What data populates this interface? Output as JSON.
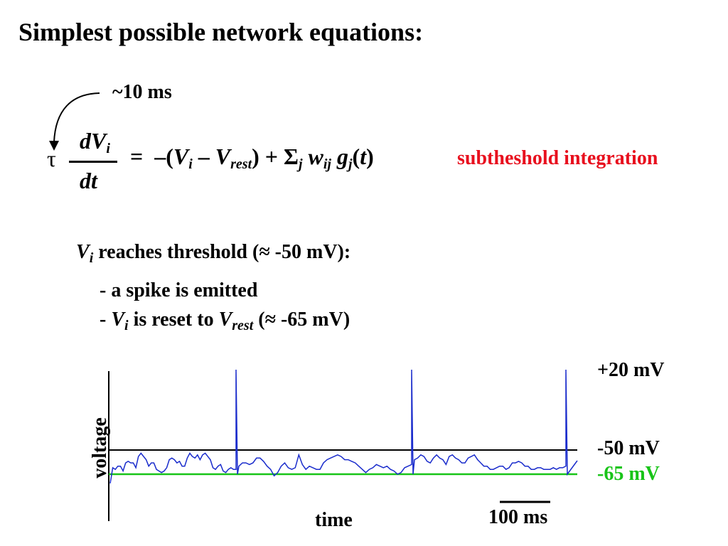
{
  "title": "Simplest possible network equations:",
  "tau_value": "~10 ms",
  "equation": {
    "tau": "τ",
    "numerator": "dV",
    "numerator_sub": "i",
    "denominator": "dt",
    "equals": "=",
    "rhs_open": "–(",
    "v": "V",
    "v_sub": "i",
    "minus": " – ",
    "vrest": "V",
    "vrest_sub": "rest",
    "rhs_mid": ") + Σ",
    "sum_sub": "j",
    "w": " w",
    "w_sub": "ij",
    "g": " g",
    "g_sub": "j",
    "g_arg_open": "(",
    "g_arg": "t",
    "g_arg_close": ")"
  },
  "subthreshold_label": "subtheshold integration",
  "condition": {
    "v": "V",
    "v_sub": "i",
    "text": " reaches threshold (≈ -50 mV):"
  },
  "rules": {
    "rule1": "- a spike is emitted",
    "rule2_prefix": "- ",
    "rule2_v": "V",
    "rule2_v_sub": "i",
    "rule2_mid": " is reset to ",
    "rule2_vrest": "V",
    "rule2_vrest_sub": "rest",
    "rule2_suffix": " (≈ -65 mV)"
  },
  "plot": {
    "y_axis_label": "voltage",
    "x_axis_label": "time",
    "scale_bar_label": "100 ms",
    "level_labels": {
      "spike": "+20 mV",
      "threshold": "-50 mV",
      "rest": "-65 mV"
    },
    "colors": {
      "trace": "#1a2ccc",
      "threshold_line": "#000000",
      "rest_line": "#18c418",
      "red_text": "#e8101e"
    },
    "chart_data": {
      "type": "line",
      "series": [
        {
          "values": [
            -65,
            -61,
            -62,
            -60,
            -60,
            -63,
            -58,
            -57,
            -58,
            -58,
            -61,
            -54,
            -52,
            -54,
            -56,
            -60,
            -58,
            -58,
            -62,
            -63,
            -64,
            -63,
            -61,
            -56,
            -55,
            -56,
            -58,
            -57,
            -60,
            -60,
            -55,
            -52,
            -54,
            -55,
            -53,
            -56,
            -53,
            -52,
            -54,
            -56,
            -61,
            -62,
            -60,
            -59,
            -63,
            -64,
            -62,
            -61,
            -62,
            -62
          ]
        },
        {
          "values": [
            -60,
            -58,
            -58,
            -59,
            -58,
            -55,
            -55,
            -57,
            -60,
            -62,
            -66,
            -64,
            -60,
            -58,
            -61,
            -62,
            -61,
            -53,
            -59,
            -62,
            -60,
            -61,
            -62,
            -62,
            -58,
            -56,
            -55,
            -54,
            -53,
            -54,
            -56,
            -56,
            -57,
            -58,
            -60,
            -62,
            -64,
            -62,
            -61,
            -59,
            -60,
            -61,
            -60,
            -62,
            -63,
            -65,
            -64,
            -61,
            -60,
            -59
          ]
        },
        {
          "values": [
            -56,
            -55,
            -53,
            -54,
            -57,
            -58,
            -55,
            -53,
            -55,
            -56,
            -59,
            -54,
            -53,
            -55,
            -56,
            -58,
            -58,
            -55,
            -54,
            -53,
            -56,
            -58,
            -60,
            -60,
            -62,
            -62,
            -61,
            -60,
            -60,
            -62,
            -61,
            -58,
            -58,
            -57,
            -58,
            -60,
            -60,
            -62,
            -62,
            -61,
            -61,
            -62,
            -62,
            -62,
            -61,
            -62,
            -61,
            -61,
            -60
          ]
        }
      ],
      "spike_peak_mv": 20,
      "threshold_mv": -50,
      "rest_mv": -65
    }
  }
}
